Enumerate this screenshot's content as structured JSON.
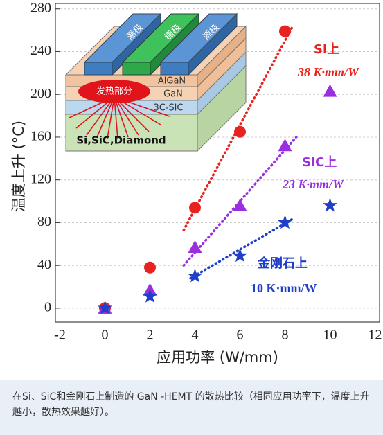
{
  "chart_data": {
    "type": "scatter",
    "x_label": "应用功率 (W/mm)",
    "y_label": "温度上升 (°C)",
    "xlim": [
      -2.2,
      12.2
    ],
    "ylim": [
      -13,
      285
    ],
    "xticks": [
      -2,
      0,
      2,
      4,
      6,
      8,
      10,
      12
    ],
    "yticks": [
      0,
      40,
      80,
      120,
      160,
      200,
      240,
      280
    ],
    "grid": true,
    "series": [
      {
        "color": "#e8231f",
        "marker": "circle",
        "x": [
          0,
          2,
          4,
          6,
          8
        ],
        "values": [
          0,
          38,
          94,
          165,
          259
        ]
      },
      {
        "color": "#9b2fe0",
        "marker": "triangle",
        "x": [
          0,
          2,
          4,
          6,
          8,
          10
        ],
        "values": [
          0,
          17,
          57,
          96,
          152,
          203
        ]
      },
      {
        "color": "#1f3fc9",
        "marker": "star",
        "x": [
          0,
          2,
          4,
          6,
          8,
          10
        ],
        "values": [
          0,
          11,
          30,
          49,
          80,
          96
        ]
      }
    ],
    "fits": [
      {
        "color": "#e8231f",
        "x": [
          3.5,
          8.3
        ],
        "values": [
          73,
          262
        ]
      },
      {
        "color": "#9b2fe0",
        "x": [
          3.5,
          8.5
        ],
        "values": [
          40,
          160
        ]
      },
      {
        "color": "#1f3fc9",
        "x": [
          3.8,
          8.3
        ],
        "values": [
          28,
          83
        ]
      }
    ],
    "annotations": [
      {
        "text": "Si上",
        "color": "#e8231f"
      },
      {
        "text": "38 K·mm/W",
        "color": "#e8231f"
      },
      {
        "text": "SiC上",
        "color": "#9b2fe0"
      },
      {
        "text": "23 K·mm/W",
        "color": "#9b2fe0"
      },
      {
        "text": "金刚石上",
        "color": "#1f3fc9"
      },
      {
        "text": "10 K·mm/W",
        "color": "#1f3fc9"
      }
    ]
  },
  "diagram": {
    "labels": [
      "漏极",
      "栅极",
      "源极",
      "AlGaN",
      "GaN",
      "3C-SiC",
      "发热部分",
      "Si,SiC,Diamond"
    ]
  },
  "caption": "在Si、SiC和金刚石上制造的 GaN -HEMT 的散热比较（相同应用功率下，温度上升越小，散热效果越好）。"
}
